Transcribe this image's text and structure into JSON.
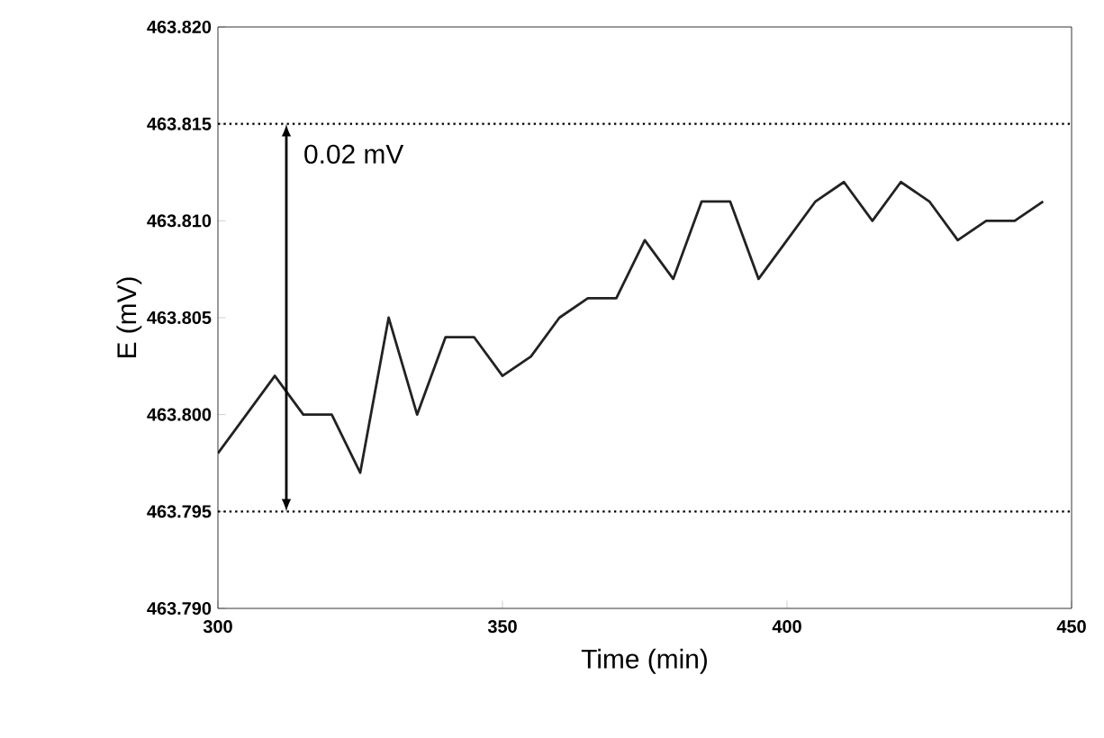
{
  "chart_data": {
    "type": "line",
    "xlabel": "Time (min)",
    "ylabel": "E (mV)",
    "x": [
      300,
      310,
      315,
      320,
      325,
      330,
      335,
      340,
      345,
      350,
      355,
      360,
      365,
      370,
      375,
      380,
      385,
      390,
      395,
      400,
      405,
      410,
      415,
      420,
      425,
      430,
      435,
      440,
      445
    ],
    "series": [
      {
        "color": "#222222",
        "values": [
          463.798,
          463.802,
          463.8,
          463.8,
          463.797,
          463.805,
          463.8,
          463.804,
          463.804,
          463.802,
          463.803,
          463.805,
          463.806,
          463.806,
          463.809,
          463.807,
          463.811,
          463.811,
          463.807,
          463.809,
          463.811,
          463.812,
          463.81,
          463.812,
          463.811,
          463.809,
          463.81,
          463.81,
          463.811
        ]
      }
    ],
    "xlim": [
      300,
      450
    ],
    "xticks": [
      300,
      350,
      400,
      450
    ],
    "ylim": [
      463.79,
      463.82
    ],
    "yticks": [
      {
        "value": 463.79,
        "label": "463.790"
      },
      {
        "value": 463.795,
        "label": "463.795"
      },
      {
        "value": 463.8,
        "label": "463.800"
      },
      {
        "value": 463.805,
        "label": "463.805"
      },
      {
        "value": 463.81,
        "label": "463.810"
      },
      {
        "value": 463.815,
        "label": "463.815"
      },
      {
        "value": 463.82,
        "label": "463.820"
      }
    ],
    "ref_lines": [
      {
        "axis": "y",
        "value": 463.815,
        "line_style": "dotted"
      },
      {
        "axis": "y",
        "value": 463.795,
        "line_style": "dotted"
      }
    ],
    "annotations": [
      "0.02 mV"
    ],
    "marker": "none",
    "line_style": "solid"
  }
}
